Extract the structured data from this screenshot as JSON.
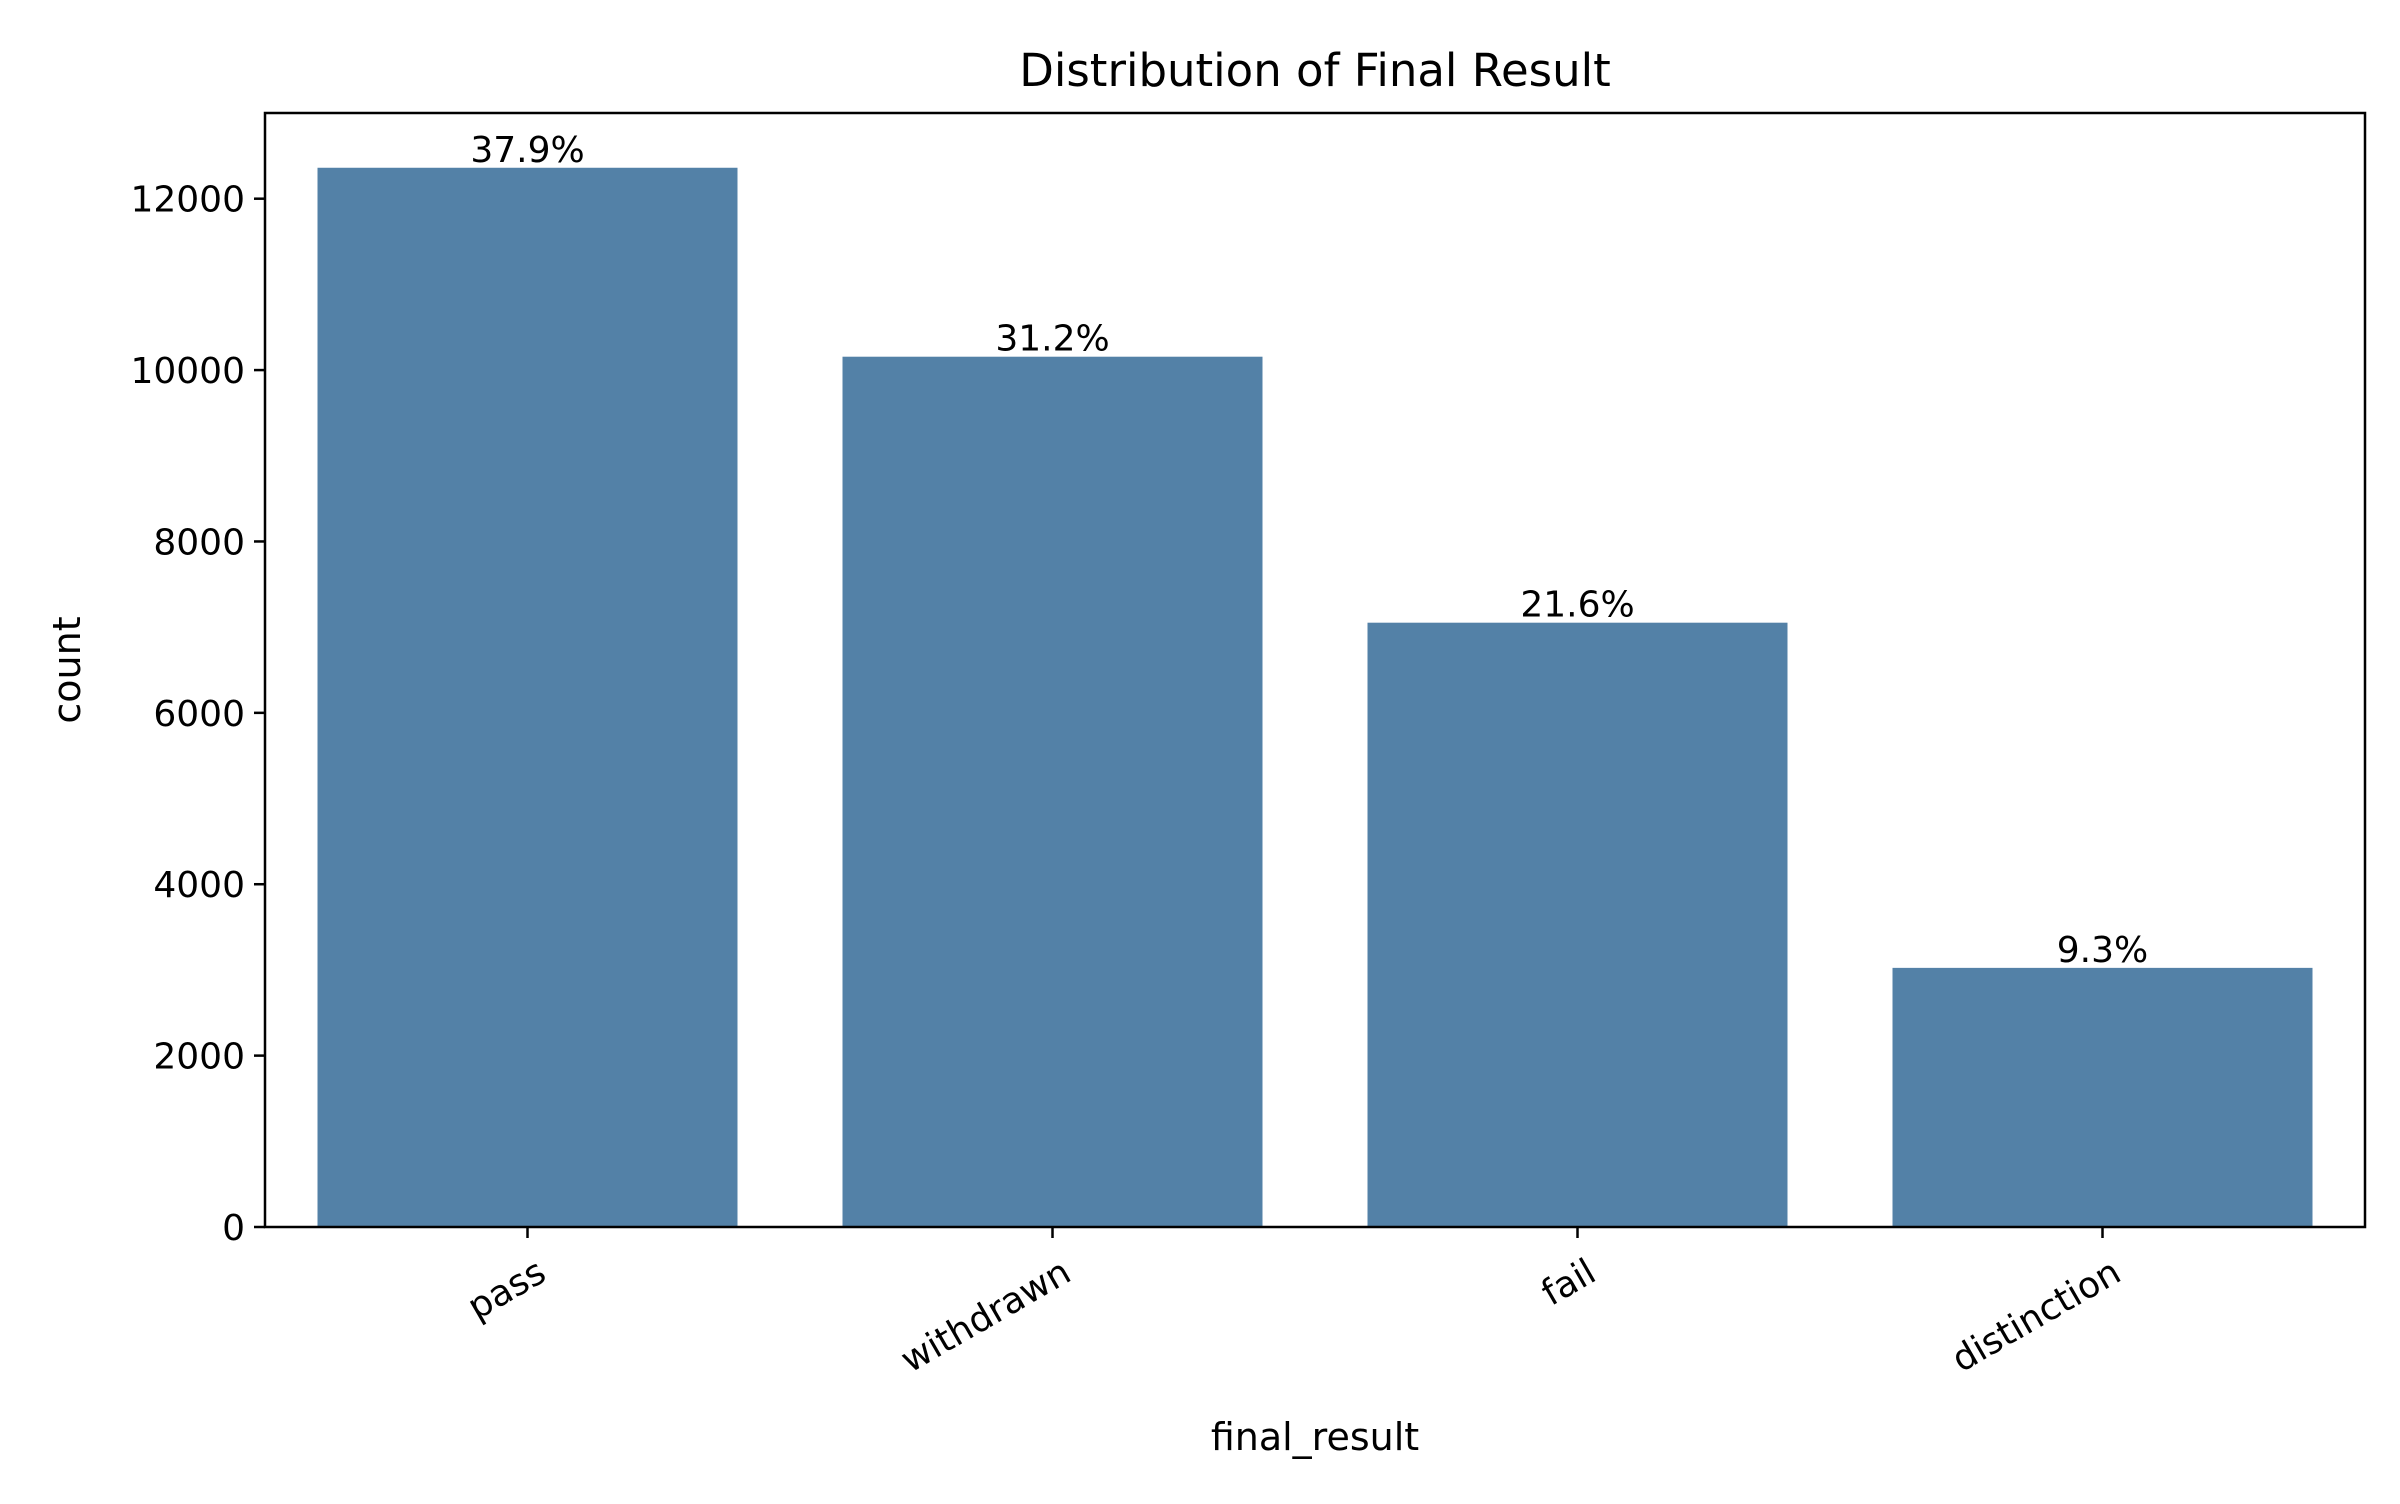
{
  "chart_data": {
    "type": "bar",
    "title": "Distribution of Final Result",
    "xlabel": "final_result",
    "ylabel": "count",
    "categories": [
      "pass",
      "withdrawn",
      "fail",
      "distinction"
    ],
    "values": [
      12361,
      10156,
      7052,
      3024
    ],
    "data_labels": [
      "37.9%",
      "31.2%",
      "21.6%",
      "9.3%"
    ],
    "ylim": [
      0,
      13000
    ],
    "yticks": [
      0,
      2000,
      4000,
      6000,
      8000,
      10000,
      12000
    ],
    "ytick_labels": [
      "0",
      "2000",
      "4000",
      "6000",
      "8000",
      "10000",
      "12000"
    ],
    "xtick_rotation": 30,
    "grid": false,
    "legend": false,
    "bar_color": "#5381a7",
    "axes_color": "#000000"
  }
}
